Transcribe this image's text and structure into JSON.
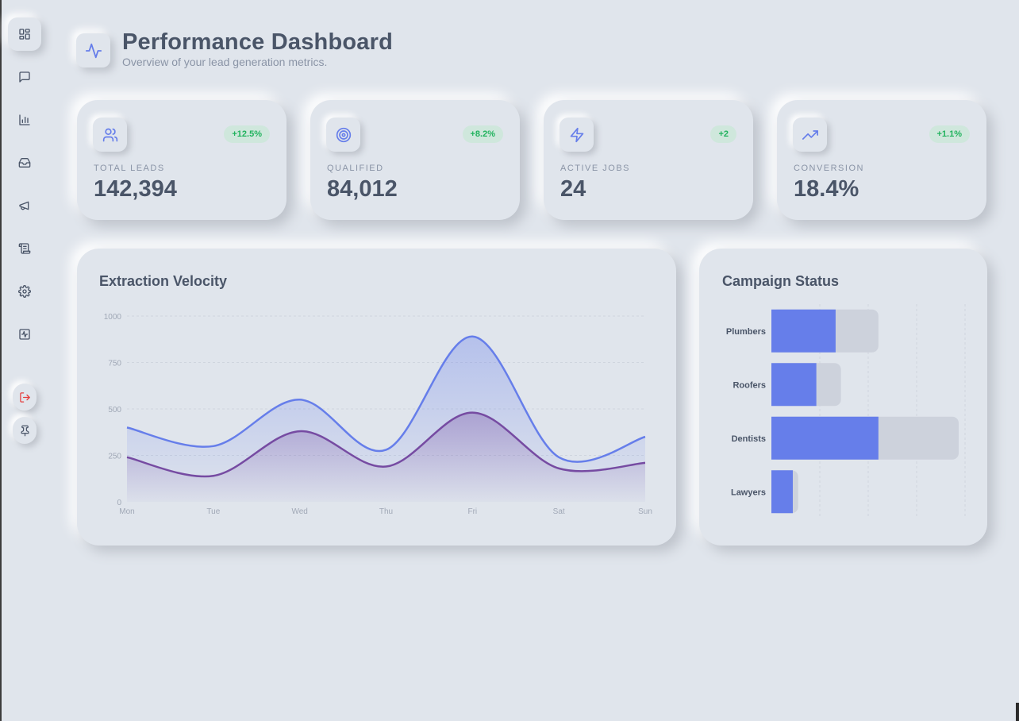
{
  "header": {
    "title": "Performance Dashboard",
    "subtitle": "Overview of your lead generation metrics.",
    "icon": "activity-icon"
  },
  "sidebar": {
    "items": [
      {
        "icon": "dashboard-icon",
        "active": true
      },
      {
        "icon": "chat-icon",
        "active": false
      },
      {
        "icon": "bar-chart-icon",
        "active": false
      },
      {
        "icon": "inbox-icon",
        "active": false
      },
      {
        "icon": "megaphone-icon",
        "active": false
      },
      {
        "icon": "scroll-icon",
        "active": false
      },
      {
        "icon": "settings-icon",
        "active": false
      },
      {
        "icon": "activity-icon",
        "active": false
      }
    ],
    "logout_icon": "logout-icon",
    "pin_icon": "pin-icon"
  },
  "stats": [
    {
      "icon": "users-icon",
      "label": "TOTAL LEADS",
      "value": "142,394",
      "badge": "+12.5%"
    },
    {
      "icon": "target-icon",
      "label": "QUALIFIED",
      "value": "84,012",
      "badge": "+8.2%"
    },
    {
      "icon": "zap-icon",
      "label": "ACTIVE JOBS",
      "value": "24",
      "badge": "+2"
    },
    {
      "icon": "trending-up-icon",
      "label": "CONVERSION",
      "value": "18.4%",
      "badge": "+1.1%"
    }
  ],
  "colors": {
    "background": "#e0e5ec",
    "accent": "#667eea",
    "accent_secondary": "#764ba2",
    "positive": "#22b35e",
    "text": "#4a5568",
    "muted": "#8a94a6"
  },
  "velocity": {
    "title": "Extraction Velocity"
  },
  "campaigns": {
    "title": "Campaign Status"
  },
  "chart_data": [
    {
      "type": "area",
      "title": "Extraction Velocity",
      "x": [
        "Mon",
        "Tue",
        "Wed",
        "Thu",
        "Fri",
        "Sat",
        "Sun"
      ],
      "ylim": [
        0,
        1000
      ],
      "yticks": [
        0,
        250,
        500,
        750,
        1000
      ],
      "grid": true,
      "series": [
        {
          "values": [
            400,
            300,
            550,
            280,
            890,
            240,
            350
          ],
          "color": "#667eea"
        },
        {
          "values": [
            240,
            140,
            380,
            190,
            480,
            180,
            210
          ],
          "color": "#764ba2"
        }
      ]
    },
    {
      "type": "bar",
      "orientation": "horizontal",
      "title": "Campaign Status",
      "categories": [
        "Plumbers",
        "Roofers",
        "Dentists",
        "Lawyers"
      ],
      "series": [
        {
          "values": [
            60,
            42,
            100,
            20
          ],
          "color": "#667eea"
        },
        {
          "values": [
            100,
            65,
            175,
            25
          ],
          "color": "#cdd2dc"
        }
      ],
      "grid": true
    }
  ]
}
